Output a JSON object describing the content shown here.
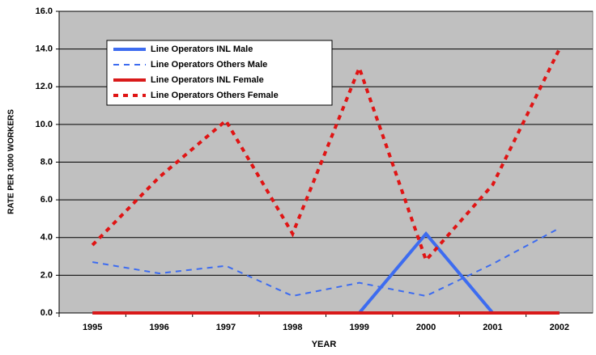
{
  "chart_data": {
    "type": "line",
    "x_label": "YEAR",
    "y_label": "RATE PER 1000 WORKERS",
    "categories": [
      "1995",
      "1996",
      "1997",
      "1998",
      "1999",
      "2000",
      "2001",
      "2002"
    ],
    "series": [
      {
        "name": "Line Operators INL Male",
        "color": "#3d6cf0",
        "style": "solid",
        "values": [
          0,
          0,
          0,
          0,
          0,
          4.2,
          0,
          0
        ]
      },
      {
        "name": "Line Operators Others Male",
        "color": "#3d6cf0",
        "style": "dashed",
        "values": [
          2.7,
          2.1,
          2.5,
          0.9,
          1.6,
          0.9,
          2.6,
          4.5
        ]
      },
      {
        "name": "Line Operators INL Female",
        "color": "#d91a1a",
        "style": "solid",
        "values": [
          0,
          0,
          0,
          0,
          0,
          0,
          0,
          0
        ]
      },
      {
        "name": "Line Operators Others Female",
        "color": "#e01414",
        "style": "dotted",
        "values": [
          3.6,
          7.2,
          10.2,
          4.2,
          13.0,
          2.8,
          6.8,
          14.0
        ]
      }
    ],
    "ylim": [
      0,
      16
    ],
    "yticks": [
      {
        "value": 0,
        "label": "0.0"
      },
      {
        "value": 2,
        "label": "2.0"
      },
      {
        "value": 4,
        "label": "4.0"
      },
      {
        "value": 6,
        "label": "6.0"
      },
      {
        "value": 8,
        "label": "8.0"
      },
      {
        "value": 10,
        "label": "10.0"
      },
      {
        "value": 12,
        "label": "12.0"
      },
      {
        "value": 14,
        "label": "14.0"
      },
      {
        "value": 16,
        "label": "16.0"
      }
    ],
    "grid": true,
    "legend": "upper left"
  }
}
